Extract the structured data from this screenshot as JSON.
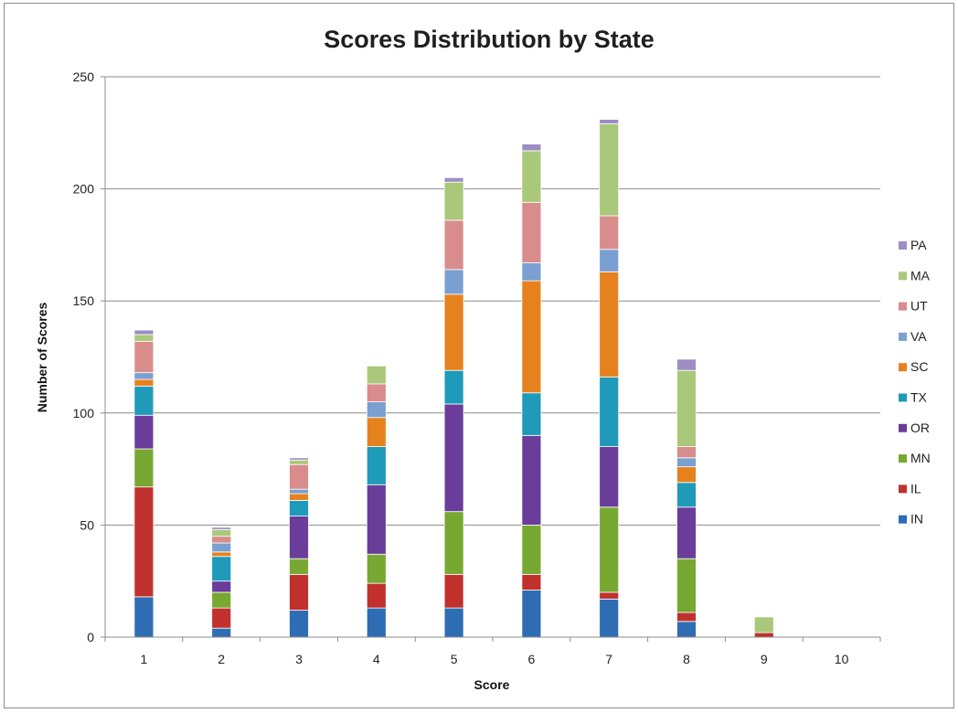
{
  "chart_data": {
    "type": "bar",
    "stacked": true,
    "title": "Scores Distribution by State",
    "xlabel": "Score",
    "ylabel": "Number of Scores",
    "categories": [
      "1",
      "2",
      "3",
      "4",
      "5",
      "6",
      "7",
      "8",
      "9",
      "10"
    ],
    "ylim": [
      0,
      250
    ],
    "yticks": [
      "0",
      "50",
      "100",
      "150",
      "200",
      "250"
    ],
    "grid": true,
    "legend_position": "right",
    "series": [
      {
        "name": "IN",
        "color": "#2e6db4",
        "values": [
          18,
          4,
          12,
          13,
          13,
          21,
          17,
          7,
          0,
          0
        ]
      },
      {
        "name": "IL",
        "color": "#c0312d",
        "values": [
          49,
          9,
          16,
          11,
          15,
          7,
          3,
          4,
          2,
          0
        ]
      },
      {
        "name": "MN",
        "color": "#77a832",
        "values": [
          17,
          7,
          7,
          13,
          28,
          22,
          38,
          24,
          0,
          0
        ]
      },
      {
        "name": "OR",
        "color": "#6a3d9a",
        "values": [
          15,
          5,
          19,
          31,
          48,
          40,
          27,
          23,
          0,
          0
        ]
      },
      {
        "name": "TX",
        "color": "#1f9ab8",
        "values": [
          13,
          11,
          7,
          17,
          15,
          19,
          31,
          11,
          0,
          0
        ]
      },
      {
        "name": "SC",
        "color": "#e6821e",
        "values": [
          3,
          2,
          3,
          13,
          34,
          50,
          47,
          7,
          0,
          0
        ]
      },
      {
        "name": "VA",
        "color": "#7a9fd1",
        "values": [
          3,
          4,
          2,
          7,
          11,
          8,
          10,
          4,
          0,
          0
        ]
      },
      {
        "name": "UT",
        "color": "#d98c8c",
        "values": [
          14,
          3,
          11,
          8,
          22,
          27,
          15,
          5,
          0,
          0
        ]
      },
      {
        "name": "MA",
        "color": "#a9c87a",
        "values": [
          3,
          3,
          2,
          8,
          17,
          23,
          41,
          34,
          7,
          0
        ]
      },
      {
        "name": "PA",
        "color": "#9c8ec4",
        "values": [
          2,
          1,
          1,
          0,
          2,
          3,
          2,
          5,
          0,
          0
        ]
      }
    ]
  }
}
